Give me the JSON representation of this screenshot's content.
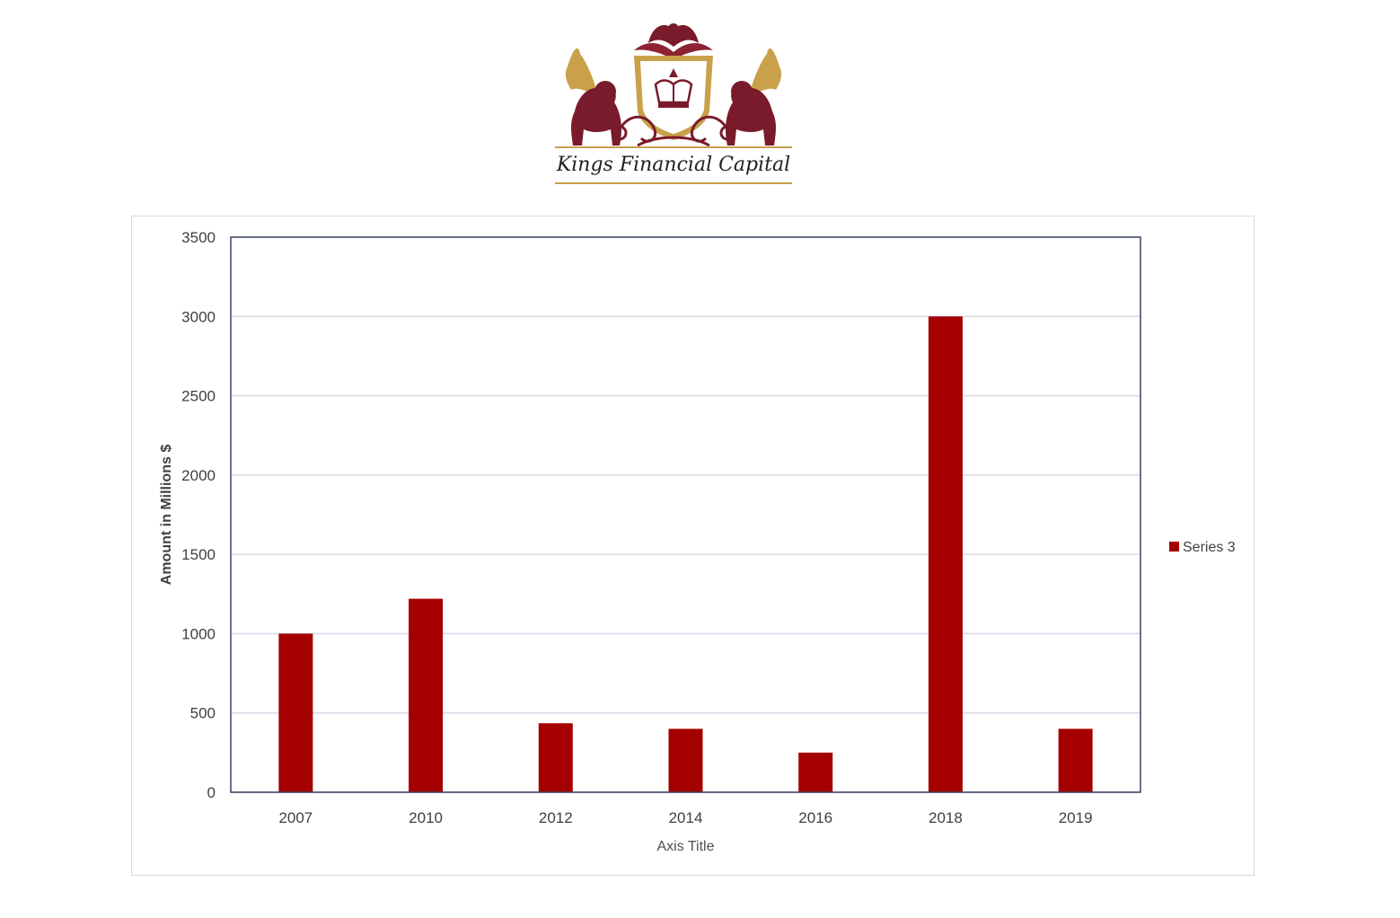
{
  "brand": {
    "name": "Kings Financial Capital",
    "colors": {
      "maroon": "#7a1b2b",
      "gold": "#c9a14a"
    }
  },
  "chart_data": {
    "type": "bar",
    "categories": [
      "2007",
      "2010",
      "2012",
      "2014",
      "2016",
      "2018",
      "2019"
    ],
    "series": [
      {
        "name": "Series 3",
        "color": "#a50000",
        "values": [
          1000,
          1220,
          435,
          400,
          250,
          3000,
          400
        ]
      }
    ],
    "title": "",
    "xlabel": "Axis Title",
    "ylabel": "Amount in Millions $",
    "ylim": [
      0,
      3500
    ],
    "yticks": [
      "0",
      "500",
      "1000",
      "1500",
      "2000",
      "2500",
      "3000",
      "3500"
    ],
    "grid": true,
    "legend": "right"
  }
}
